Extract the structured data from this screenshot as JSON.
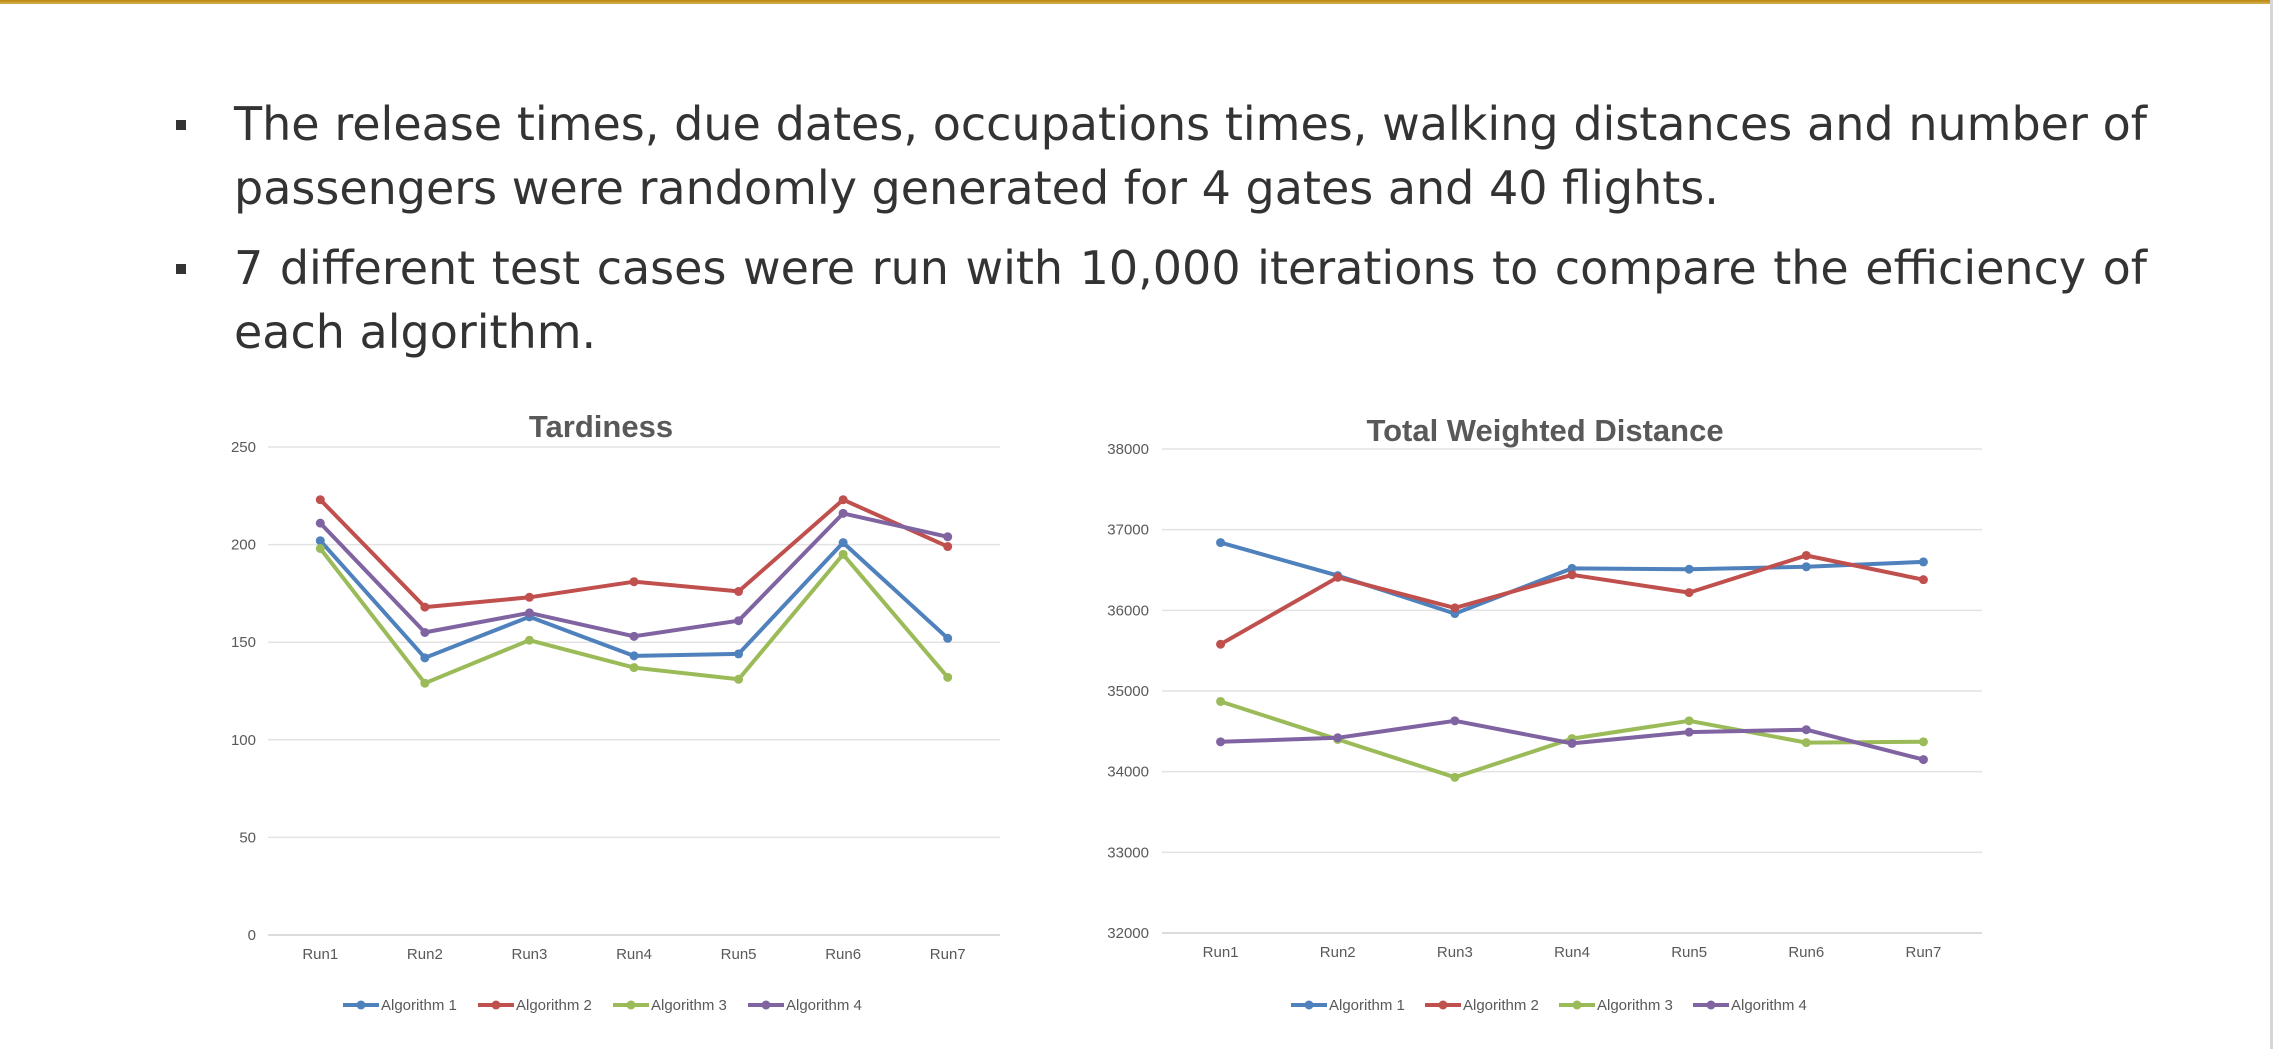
{
  "slide": {
    "bullets": [
      "The release times, due dates, occupations times, walking distances and number of passengers were randomly generated for 4 gates and 40 flights.",
      "7 different test cases were run with 10,000 iterations to compare the efficiency of each algorithm."
    ],
    "colors": {
      "accent_rule": "#b8860b"
    }
  },
  "chart_data": [
    {
      "type": "line",
      "title": "Tardiness",
      "xlabel": "",
      "ylabel": "",
      "categories": [
        "Run1",
        "Run2",
        "Run3",
        "Run4",
        "Run5",
        "Run6",
        "Run7"
      ],
      "ylim": [
        0,
        250
      ],
      "yticks": [
        0,
        50,
        100,
        150,
        200,
        250
      ],
      "grid": true,
      "legend": "bottom",
      "series": [
        {
          "name": "Algorithm 1",
          "color": "#4f81bd",
          "values": [
            202,
            142,
            163,
            143,
            144,
            201,
            152
          ]
        },
        {
          "name": "Algorithm 2",
          "color": "#c0504d",
          "values": [
            223,
            168,
            173,
            181,
            176,
            223,
            199
          ]
        },
        {
          "name": "Algorithm 3",
          "color": "#9bbb59",
          "values": [
            198,
            129,
            151,
            137,
            131,
            195,
            132
          ]
        },
        {
          "name": "Algorithm 4",
          "color": "#8064a2",
          "values": [
            211,
            155,
            165,
            153,
            161,
            216,
            204
          ]
        }
      ]
    },
    {
      "type": "line",
      "title": "Total Weighted Distance",
      "xlabel": "",
      "ylabel": "",
      "categories": [
        "Run1",
        "Run2",
        "Run3",
        "Run4",
        "Run5",
        "Run6",
        "Run7"
      ],
      "ylim": [
        32000,
        38000
      ],
      "yticks": [
        32000,
        33000,
        34000,
        35000,
        36000,
        37000,
        38000
      ],
      "grid": true,
      "legend": "bottom",
      "series": [
        {
          "name": "Algorithm 1",
          "color": "#4f81bd",
          "values": [
            36840,
            36430,
            35960,
            36520,
            36510,
            36540,
            36600
          ]
        },
        {
          "name": "Algorithm 2",
          "color": "#c0504d",
          "values": [
            35580,
            36410,
            36030,
            36440,
            36220,
            36680,
            36380
          ]
        },
        {
          "name": "Algorithm 3",
          "color": "#9bbb59",
          "values": [
            34870,
            34400,
            33930,
            34410,
            34630,
            34360,
            34370
          ]
        },
        {
          "name": "Algorithm 4",
          "color": "#8064a2",
          "values": [
            34370,
            34420,
            34630,
            34350,
            34490,
            34520,
            34150
          ]
        }
      ]
    }
  ]
}
